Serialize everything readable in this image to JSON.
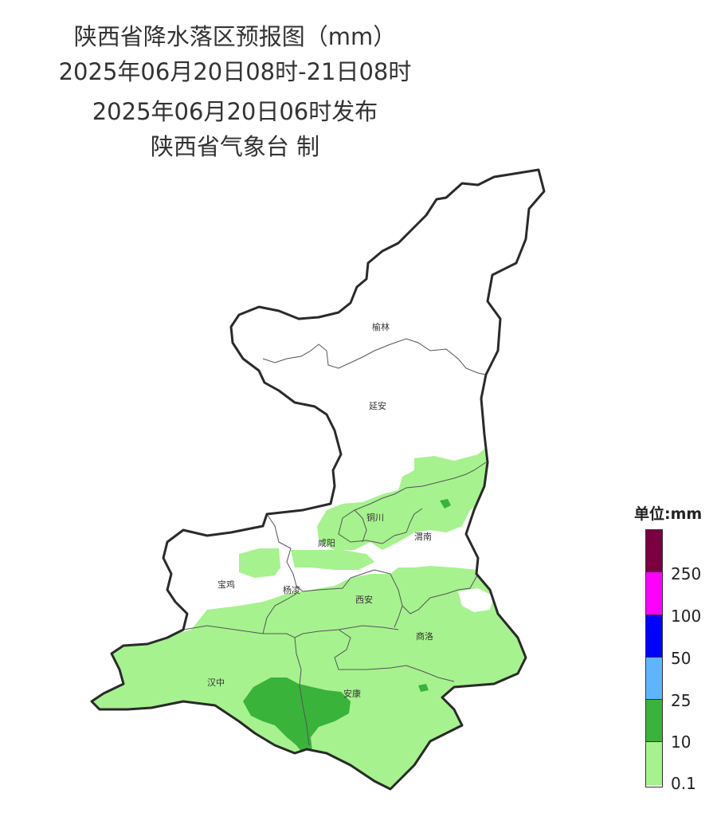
{
  "title": {
    "line1": "陕西省降水落区预报图（mm）",
    "line2": "2025年06月20日08时-21日08时",
    "line3": "2025年06月20日06时发布",
    "line4": "陕西省气象台 制"
  },
  "cities": [
    {
      "id": "yulin",
      "name": "榆林"
    },
    {
      "id": "yanan",
      "name": "延安"
    },
    {
      "id": "tongchuan",
      "name": "铜川"
    },
    {
      "id": "weinan",
      "name": "渭南"
    },
    {
      "id": "xianyang",
      "name": "咸阳"
    },
    {
      "id": "baoji",
      "name": "宝鸡"
    },
    {
      "id": "yangling",
      "name": "杨凌"
    },
    {
      "id": "xian",
      "name": "西安"
    },
    {
      "id": "shangluo",
      "name": "商洛"
    },
    {
      "id": "hanzhong",
      "name": "汉中"
    },
    {
      "id": "ankang",
      "name": "安康"
    }
  ],
  "legend": {
    "title": "单位:mm",
    "bins": [
      {
        "label": "250",
        "color": "#7a0040"
      },
      {
        "label": "100",
        "color": "#ff00ff"
      },
      {
        "label": "50",
        "color": "#0000ff"
      },
      {
        "label": "25",
        "color": "#5fb4ff"
      },
      {
        "label": "10",
        "color": "#3ab33a"
      },
      {
        "label": "0.1",
        "color": "#a6f28f"
      }
    ],
    "ticks": [
      "250",
      "100",
      "50",
      "25",
      "10",
      "0.1"
    ]
  },
  "colors": {
    "light_rain": "#a6f28f",
    "moderate_rain": "#3ab33a",
    "province_border": "#2a2a2a",
    "city_border": "#555555"
  }
}
